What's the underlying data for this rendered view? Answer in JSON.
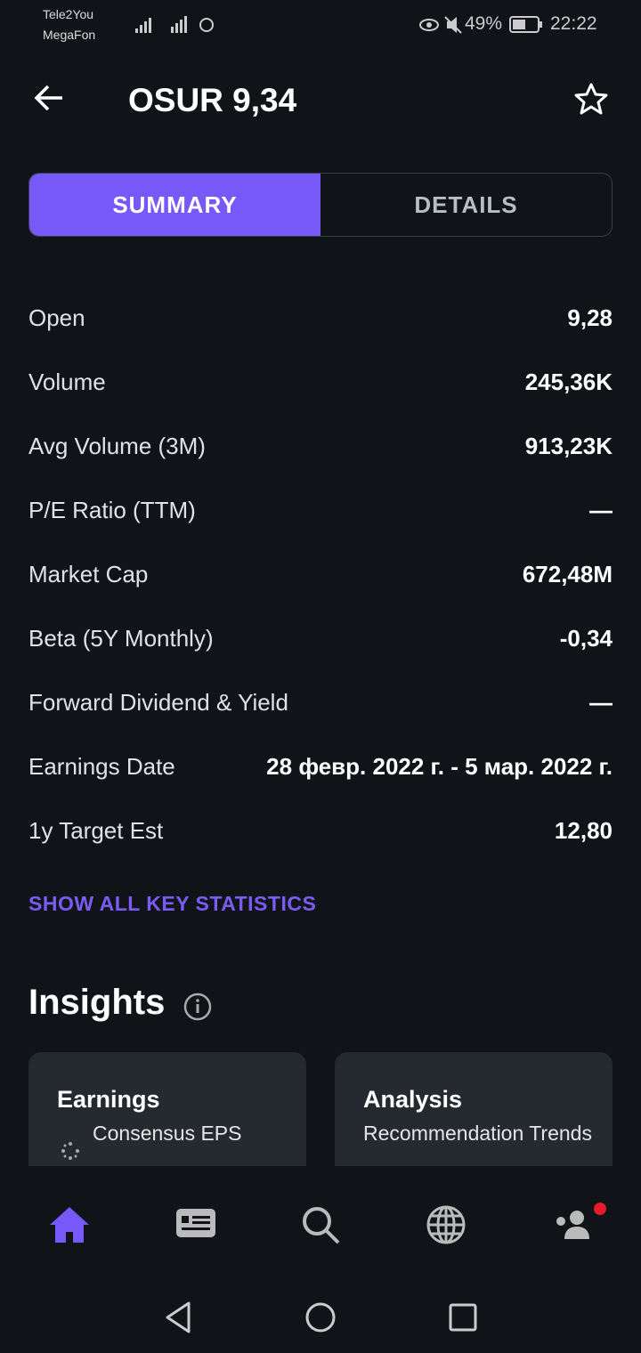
{
  "status_bar": {
    "carrier_1": "Tele2You",
    "carrier_2": "MegaFon",
    "battery": "49%",
    "time": "22:22"
  },
  "header": {
    "title": "OSUR 9,34"
  },
  "tabs": [
    "SUMMARY",
    "DETAILS"
  ],
  "stats": [
    {
      "label": "Open",
      "value": "9,28"
    },
    {
      "label": "Volume",
      "value": "245,36K"
    },
    {
      "label": "Avg Volume (3M)",
      "value": "913,23K"
    },
    {
      "label": "P/E Ratio (TTM)",
      "value": "—"
    },
    {
      "label": "Market Cap",
      "value": "672,48M"
    },
    {
      "label": "Beta (5Y Monthly)",
      "value": "-0,34"
    },
    {
      "label": "Forward Dividend & Yield",
      "value": "—"
    },
    {
      "label": "Earnings Date",
      "value": "28 февр. 2022 г. - 5 мар. 2022 г."
    },
    {
      "label": "1y Target Est",
      "value": "12,80"
    }
  ],
  "show_all_link": "SHOW ALL KEY STATISTICS",
  "insights": {
    "title": "Insights",
    "cards": [
      {
        "title": "Earnings",
        "subtitle": "Consensus EPS"
      },
      {
        "title": "Analysis",
        "subtitle": "Recommendation Trends"
      }
    ]
  }
}
